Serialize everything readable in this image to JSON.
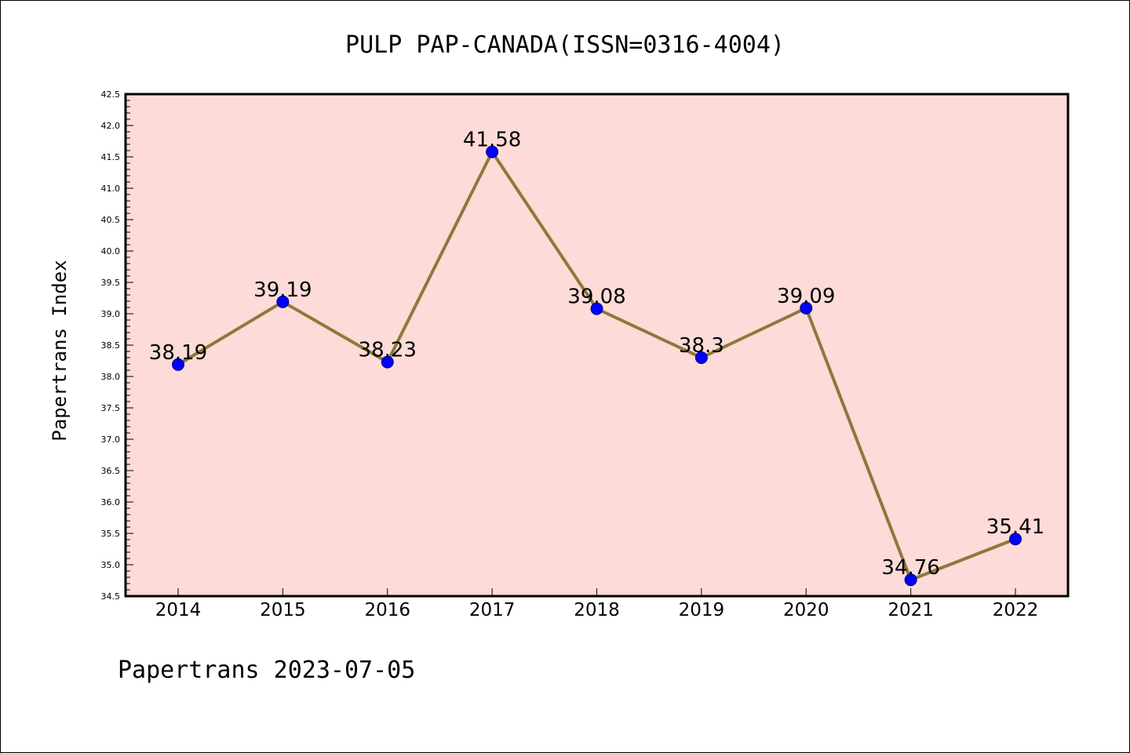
{
  "chart_data": {
    "type": "line",
    "title": "PULP PAP-CANADA(ISSN=0316-4004)",
    "xlabel": "",
    "ylabel": "Papertrans Index",
    "footer": "Papertrans 2023-07-05",
    "categories": [
      "2014",
      "2015",
      "2016",
      "2017",
      "2018",
      "2019",
      "2020",
      "2021",
      "2022"
    ],
    "series": [
      {
        "values": [
          38.19,
          39.19,
          38.23,
          41.58,
          39.08,
          38.3,
          39.09,
          34.76,
          35.41
        ],
        "data_labels": [
          "38.19",
          "39.19",
          "38.23",
          "41.58",
          "39.08",
          "38.3",
          "39.09",
          "34.76",
          "35.41"
        ]
      }
    ],
    "ylim": [
      34.5,
      42.5
    ],
    "yticks": [
      "34.5",
      "35.0",
      "35.5",
      "36.0",
      "36.5",
      "37.0",
      "37.5",
      "38.0",
      "38.5",
      "39.0",
      "39.5",
      "40.0",
      "40.5",
      "41.0",
      "41.5",
      "42.0",
      "42.5"
    ],
    "grid": false,
    "colors": {
      "plot_background": "#fddbd8",
      "line": "#8b7a3a",
      "marker": "#0000ff",
      "marker_edge": "#00008b"
    }
  }
}
